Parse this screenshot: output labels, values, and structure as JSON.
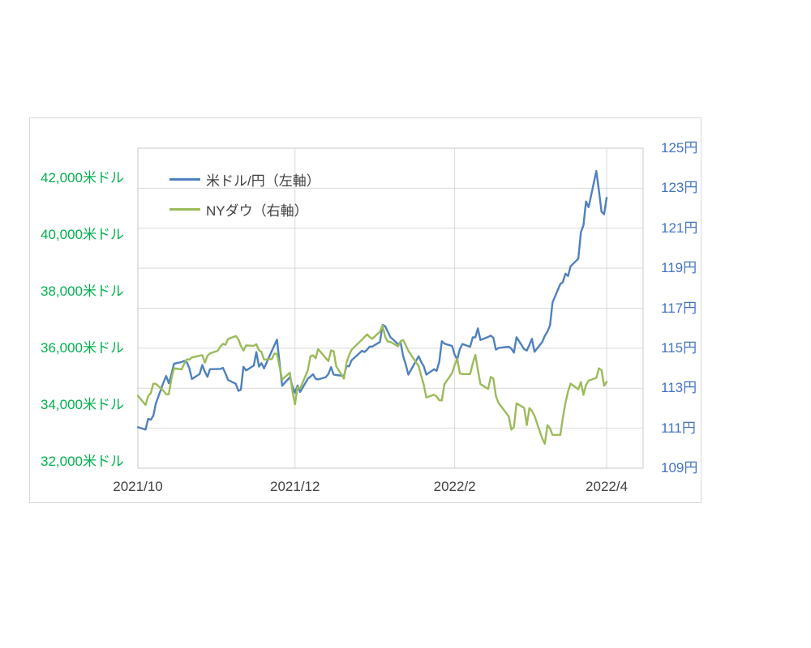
{
  "page": {
    "background": "#ffffff"
  },
  "chart_data": {
    "type": "line",
    "title": "",
    "legend": {
      "position": "top-left-inside",
      "items": [
        {
          "label": "米ドル/円（左軸）",
          "color": "#4f81bd"
        },
        {
          "label": "NYダウ（右軸）",
          "color": "#9bbb59"
        }
      ]
    },
    "colors": {
      "grid": "#d9d9d9",
      "plot_border": "#c9c9c9",
      "card_border": "#d9d9d9",
      "x_label_color": "#404040",
      "legend_text": "#404040",
      "left_axis_text": "#00b050",
      "right_axis_text": "#4472c4"
    },
    "x_axis": {
      "start_date": "2021-10-01",
      "tick_labels": [
        {
          "label": "2021/10",
          "date": "2021-10-01"
        },
        {
          "label": "2021/12",
          "date": "2021-12-01"
        },
        {
          "label": "2022/2",
          "date": "2022-02-01"
        },
        {
          "label": "2022/4",
          "date": "2022-04-01"
        }
      ]
    },
    "yen_axis": {
      "side": "right",
      "min": 109,
      "max": 125,
      "major_unit": 2,
      "ticks": [
        {
          "label": "125円",
          "value": 125
        },
        {
          "label": "123円",
          "value": 123
        },
        {
          "label": "121円",
          "value": 121
        },
        {
          "label": "119円",
          "value": 119
        },
        {
          "label": "117円",
          "value": 117
        },
        {
          "label": "115円",
          "value": 115
        },
        {
          "label": "113円",
          "value": 113
        },
        {
          "label": "111円",
          "value": 111
        },
        {
          "label": "109円",
          "value": 109
        }
      ]
    },
    "dollar_axis": {
      "side": "left",
      "plot_top_value": 43057,
      "plot_bottom_value": 31771,
      "major_unit": 2000,
      "ticks": [
        {
          "label": "42,000米ドル",
          "value": 42000
        },
        {
          "label": "40,000米ドル",
          "value": 40000
        },
        {
          "label": "38,000米ドル",
          "value": 38000
        },
        {
          "label": "36,000米ドル",
          "value": 36000
        },
        {
          "label": "34,000米ドル",
          "value": 34000
        },
        {
          "label": "32,000米ドル",
          "value": 32000
        }
      ]
    },
    "dates": [
      "2021-10-01",
      "2021-10-04",
      "2021-10-05",
      "2021-10-06",
      "2021-10-07",
      "2021-10-08",
      "2021-10-11",
      "2021-10-12",
      "2021-10-13",
      "2021-10-14",
      "2021-10-15",
      "2021-10-18",
      "2021-10-19",
      "2021-10-20",
      "2021-10-21",
      "2021-10-22",
      "2021-10-25",
      "2021-10-26",
      "2021-10-27",
      "2021-10-28",
      "2021-10-29",
      "2021-11-01",
      "2021-11-02",
      "2021-11-03",
      "2021-11-04",
      "2021-11-05",
      "2021-11-08",
      "2021-11-09",
      "2021-11-10",
      "2021-11-11",
      "2021-11-12",
      "2021-11-15",
      "2021-11-16",
      "2021-11-17",
      "2021-11-18",
      "2021-11-19",
      "2021-11-22",
      "2021-11-23",
      "2021-11-24",
      "2021-11-26",
      "2021-11-29",
      "2021-11-30",
      "2021-12-01",
      "2021-12-02",
      "2021-12-03",
      "2021-12-06",
      "2021-12-07",
      "2021-12-08",
      "2021-12-09",
      "2021-12-10",
      "2021-12-13",
      "2021-12-14",
      "2021-12-15",
      "2021-12-16",
      "2021-12-17",
      "2021-12-20",
      "2021-12-21",
      "2021-12-22",
      "2021-12-23",
      "2021-12-27",
      "2021-12-28",
      "2021-12-29",
      "2021-12-30",
      "2021-12-31",
      "2022-01-03",
      "2022-01-04",
      "2022-01-05",
      "2022-01-06",
      "2022-01-07",
      "2022-01-10",
      "2022-01-11",
      "2022-01-12",
      "2022-01-13",
      "2022-01-14",
      "2022-01-18",
      "2022-01-19",
      "2022-01-20",
      "2022-01-21",
      "2022-01-24",
      "2022-01-25",
      "2022-01-26",
      "2022-01-27",
      "2022-01-28",
      "2022-01-31",
      "2022-02-01",
      "2022-02-02",
      "2022-02-03",
      "2022-02-04",
      "2022-02-07",
      "2022-02-08",
      "2022-02-09",
      "2022-02-10",
      "2022-02-11",
      "2022-02-14",
      "2022-02-15",
      "2022-02-16",
      "2022-02-17",
      "2022-02-18",
      "2022-02-22",
      "2022-02-23",
      "2022-02-24",
      "2022-02-25",
      "2022-02-28",
      "2022-03-01",
      "2022-03-02",
      "2022-03-03",
      "2022-03-04",
      "2022-03-07",
      "2022-03-08",
      "2022-03-09",
      "2022-03-10",
      "2022-03-11",
      "2022-03-14",
      "2022-03-15",
      "2022-03-16",
      "2022-03-17",
      "2022-03-18",
      "2022-03-21",
      "2022-03-22",
      "2022-03-23",
      "2022-03-24",
      "2022-03-25",
      "2022-03-28",
      "2022-03-29",
      "2022-03-30",
      "2022-03-31",
      "2022-04-01"
    ],
    "series": [
      {
        "name": "USD/JPY",
        "legend_label": "米ドル/円（左軸）",
        "axis": "yen",
        "color": "#4f81bd",
        "values": [
          111.05,
          110.93,
          111.47,
          111.42,
          111.63,
          112.24,
          113.31,
          113.61,
          113.25,
          113.67,
          114.22,
          114.31,
          114.37,
          114.31,
          113.99,
          113.46,
          113.71,
          114.16,
          113.83,
          113.57,
          113.95,
          113.96,
          113.96,
          114.02,
          113.74,
          113.41,
          113.22,
          112.87,
          112.92,
          114.07,
          113.89,
          114.13,
          114.81,
          114.08,
          114.25,
          113.99,
          114.87,
          115.14,
          115.43,
          113.12,
          113.55,
          113.1,
          112.77,
          113.14,
          112.81,
          113.47,
          113.58,
          113.7,
          113.47,
          113.44,
          113.55,
          113.72,
          114.05,
          113.68,
          113.66,
          113.61,
          114.11,
          114.09,
          114.4,
          114.87,
          114.81,
          114.93,
          115.08,
          115.08,
          115.31,
          116.16,
          116.1,
          115.83,
          115.56,
          115.2,
          115.28,
          114.6,
          114.19,
          113.68,
          114.6,
          114.31,
          114.1,
          113.68,
          113.95,
          113.87,
          114.31,
          115.35,
          115.23,
          115.11,
          114.68,
          114.43,
          114.96,
          115.21,
          115.07,
          115.54,
          115.54,
          115.99,
          115.41,
          115.56,
          115.63,
          115.52,
          114.93,
          115.01,
          115.07,
          114.98,
          114.78,
          115.55,
          114.95,
          114.88,
          115.17,
          115.47,
          114.82,
          115.31,
          115.62,
          115.83,
          116.14,
          117.29,
          118.21,
          118.3,
          118.73,
          118.61,
          119.1,
          119.48,
          120.8,
          121.14,
          122.34,
          122.05,
          123.86,
          122.88,
          121.83,
          121.7,
          122.52
        ]
      },
      {
        "name": "NYダウ",
        "legend_label": "NYダウ（右軸）",
        "axis": "dollar",
        "color": "#9bbb59",
        "values": [
          34326,
          34003,
          34315,
          34417,
          34755,
          34746,
          34496,
          34378,
          34377,
          34913,
          35295,
          35258,
          35457,
          35609,
          35603,
          35677,
          35741,
          35757,
          35490,
          35730,
          35820,
          35914,
          36053,
          36157,
          36124,
          36328,
          36432,
          36320,
          36080,
          35921,
          36100,
          36087,
          36142,
          35931,
          35871,
          35602,
          35619,
          35814,
          35804,
          34899,
          35136,
          34484,
          34022,
          34640,
          34580,
          35227,
          35719,
          35755,
          35650,
          35971,
          35651,
          35545,
          35927,
          35898,
          35365,
          34932,
          35492,
          35754,
          35950,
          36302,
          36398,
          36489,
          36398,
          36338,
          36585,
          36800,
          36407,
          36236,
          36232,
          36069,
          36252,
          36290,
          36114,
          35912,
          35369,
          35029,
          34715,
          34265,
          34365,
          34298,
          34168,
          34161,
          34725,
          35132,
          35405,
          35629,
          35111,
          35090,
          35091,
          35463,
          35768,
          35242,
          34738,
          34566,
          34988,
          34934,
          34312,
          34079,
          33597,
          33132,
          33224,
          34059,
          33893,
          33295,
          33891,
          33795,
          33615,
          32817,
          32632,
          33286,
          33174,
          32944,
          32945,
          33544,
          34063,
          34481,
          34755,
          34553,
          34808,
          34359,
          34708,
          34861,
          34956,
          35294,
          35228,
          34678,
          34818
        ]
      }
    ]
  }
}
